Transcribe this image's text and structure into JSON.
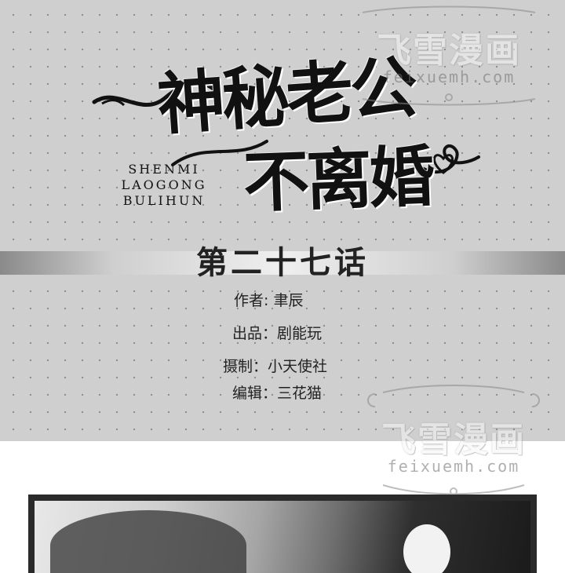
{
  "cover": {
    "title_line1": "神秘老公",
    "title_line2": "不离婚",
    "pinyin": [
      "SHENMI",
      "LAOGONG",
      "BULIHUN"
    ]
  },
  "chapter": {
    "title": "第二十七话"
  },
  "credits": [
    {
      "label": "作者",
      "sep": ": ",
      "value": "聿辰"
    },
    {
      "label": "出品",
      "sep": "：",
      "value": "剧能玩"
    },
    {
      "label": "摄制",
      "sep": "：",
      "value": "小天使社"
    },
    {
      "label": "编辑",
      "sep": "：",
      "value": "三花猫"
    }
  ],
  "watermark": {
    "name": "飞雪漫画",
    "url_top": "feixuemh.com",
    "url_bottom": "feixuemh.com"
  },
  "colors": {
    "panel_bg": "#cfcfcf",
    "dot": "#8f8f8f",
    "text": "#222222"
  }
}
